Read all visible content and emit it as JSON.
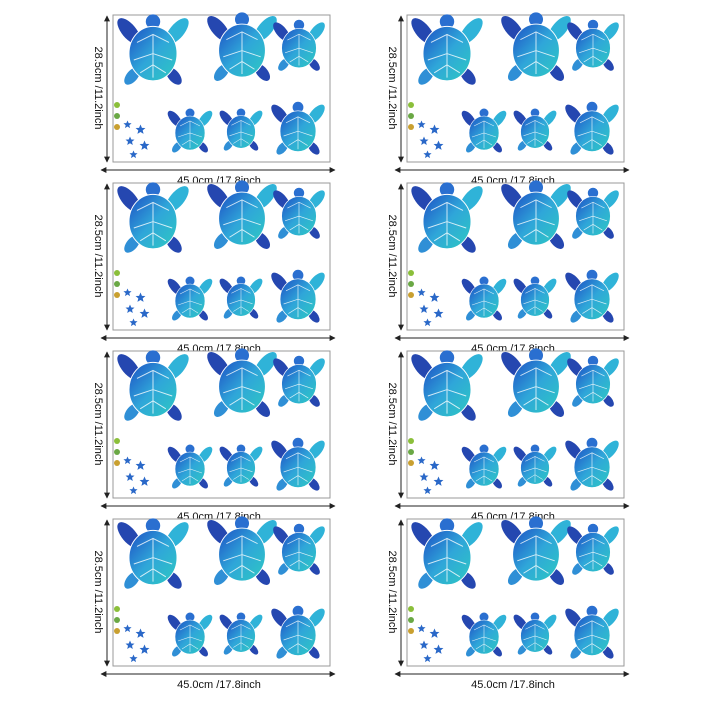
{
  "panels": [
    {
      "height_label": "28.5cm /11.2inch",
      "width_label": "45.0cm /17.8inch"
    },
    {
      "height_label": "28.5cm /11.2inch",
      "width_label": "45.0cm /17.8inch"
    },
    {
      "height_label": "28.5cm /11.2inch",
      "width_label": "45.0cm /17.8inch"
    },
    {
      "height_label": "28.5cm /11.2inch",
      "width_label": "45.0cm /17.8inch"
    },
    {
      "height_label": "28.5cm /11.2inch",
      "width_label": "45.0cm /17.8inch"
    },
    {
      "height_label": "28.5cm /11.2inch",
      "width_label": "45.0cm /17.8inch"
    },
    {
      "height_label": "28.5cm /11.2inch",
      "width_label": "45.0cm /17.8inch"
    },
    {
      "height_label": "28.5cm /11.2inch",
      "width_label": "45.0cm /17.8inch"
    }
  ]
}
